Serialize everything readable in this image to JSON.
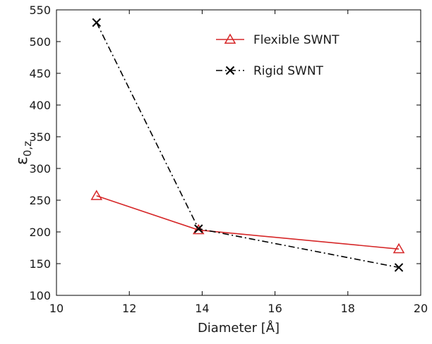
{
  "chart_data": {
    "type": "line",
    "xlabel": "Diameter [Å]",
    "ylabel": "ε",
    "ylabel_subscript": "0,z",
    "xlim": [
      10,
      20
    ],
    "ylim": [
      100,
      550
    ],
    "xticks": [
      10,
      12,
      14,
      16,
      18,
      20
    ],
    "yticks": [
      100,
      150,
      200,
      250,
      300,
      350,
      400,
      450,
      500,
      550
    ],
    "grid": false,
    "legend_position": "top-right",
    "series": [
      {
        "name": "Flexible SWNT",
        "color": "#d62728",
        "line_style": "solid",
        "marker": "triangle",
        "x": [
          11.1,
          13.9,
          19.4
        ],
        "y": [
          257,
          203,
          173
        ]
      },
      {
        "name": "Rigid SWNT",
        "color": "#000000",
        "line_style": "dash-dot",
        "marker": "x",
        "x": [
          11.1,
          13.9,
          19.4
        ],
        "y": [
          530,
          205,
          144
        ]
      }
    ]
  }
}
